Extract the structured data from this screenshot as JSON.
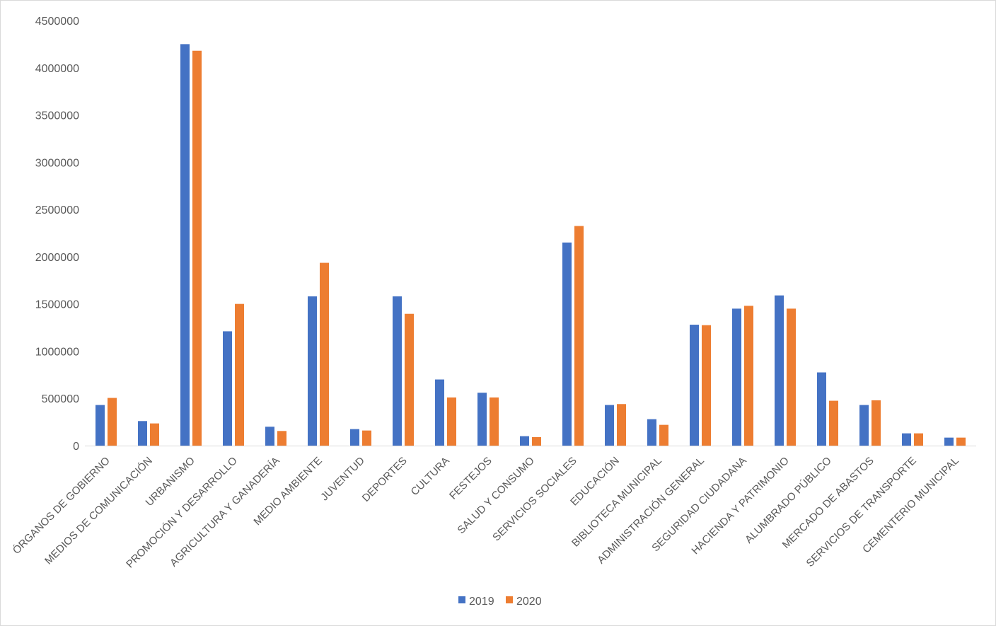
{
  "chart_data": {
    "type": "bar",
    "categories": [
      "ÓRGANOS DE GOBIERNO",
      "MEDIOS DE COMUNICACIÓN",
      "URBANISMO",
      "PROMOCIÓN Y DESARROLLO",
      "AGRICULTURA Y GANADERÍA",
      "MEDIO  AMBIENTE",
      "JUVENTUD",
      "DEPORTES",
      "CULTURA",
      "FESTEJOS",
      "SALUD Y CONSUMO",
      "SERVICIOS SOCIALES",
      "EDUCACIÓN",
      "BIBLIOTECA MUNICIPAL",
      "ADMINISTRACIÓN GENERAL",
      "SEGURIDAD CIUDADANA",
      "HACIENDA Y PATRIMONIO",
      "ALUMBRADO PÚBLICO",
      "MERCADO DE ABASTOS",
      "SERVICIOS DE TRANSPORTE",
      "CEMENTERIO MUNICIPAL"
    ],
    "series": [
      {
        "name": "2019",
        "color": "#4472c4",
        "values": [
          430000,
          260000,
          4250000,
          1210000,
          200000,
          1580000,
          175000,
          1580000,
          700000,
          560000,
          100000,
          2150000,
          430000,
          280000,
          1280000,
          1450000,
          1590000,
          775000,
          430000,
          130000,
          85000
        ]
      },
      {
        "name": "2020",
        "color": "#ed7d31",
        "values": [
          505000,
          235000,
          4180000,
          1500000,
          155000,
          1935000,
          160000,
          1395000,
          510000,
          510000,
          90000,
          2325000,
          440000,
          220000,
          1275000,
          1480000,
          1450000,
          475000,
          480000,
          130000,
          85000
        ]
      }
    ],
    "yticks": [
      "0",
      "500000",
      "1000000",
      "1500000",
      "2000000",
      "2500000",
      "3000000",
      "3500000",
      "4000000",
      "4500000"
    ],
    "ylim": [
      0,
      4500000
    ],
    "title": "",
    "xlabel": "",
    "ylabel": "",
    "grid": false,
    "legend_position": "bottom"
  }
}
